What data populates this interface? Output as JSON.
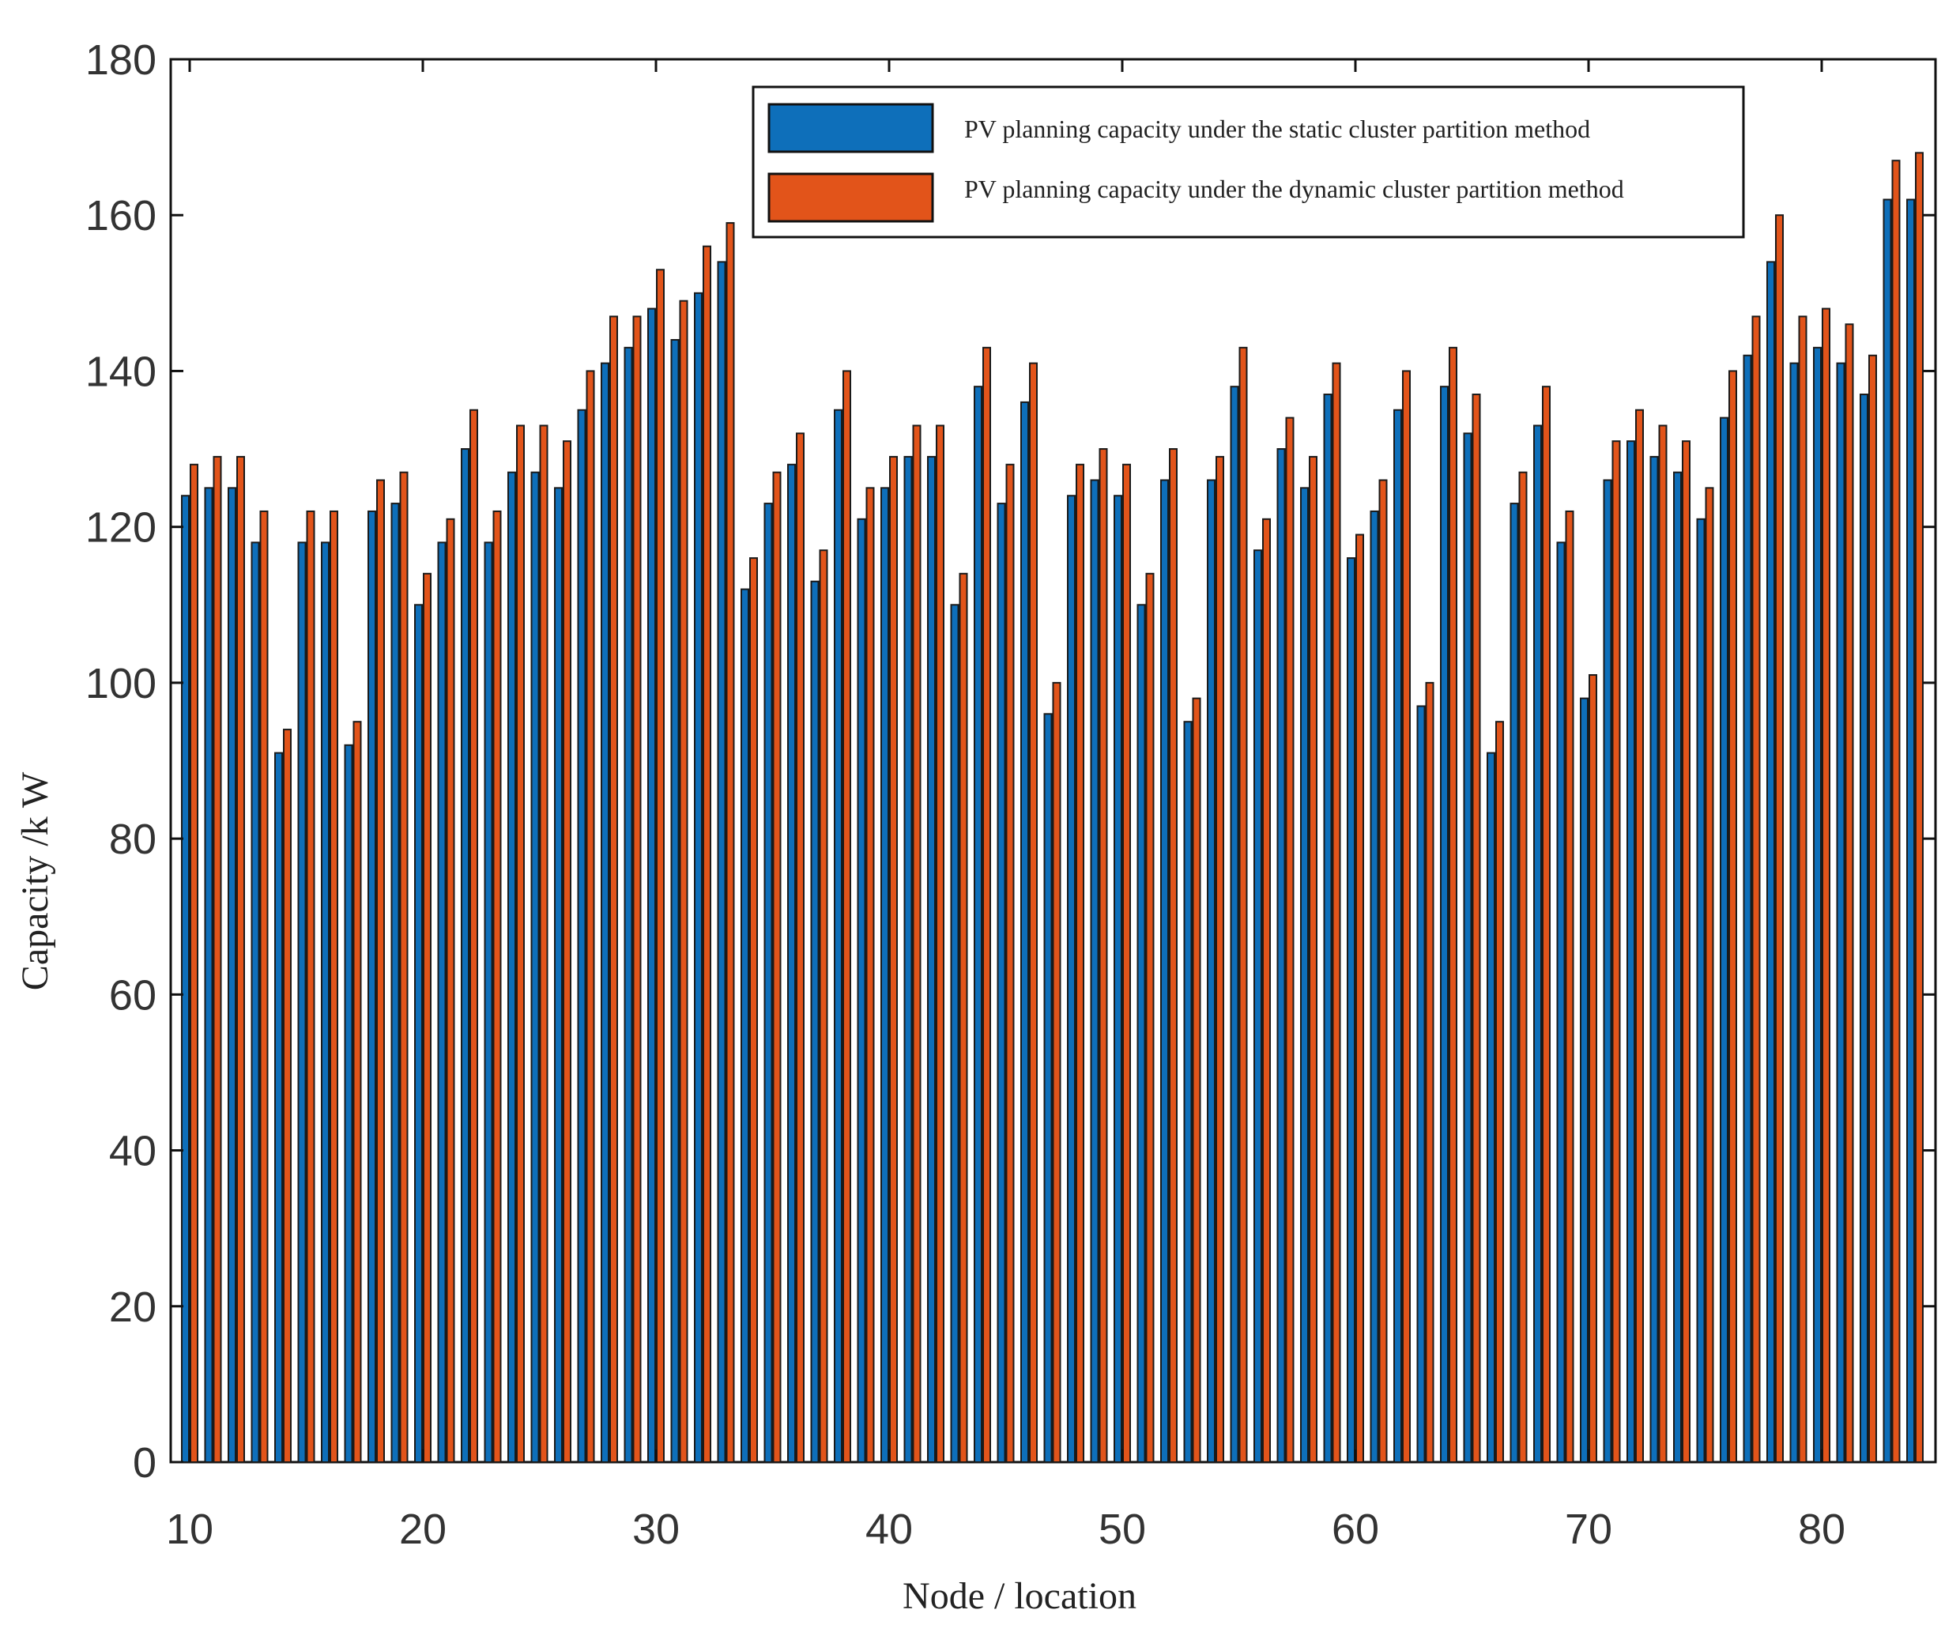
{
  "chart_data": {
    "type": "bar",
    "xlabel": "Node / location",
    "ylabel": "Capacity /k W",
    "xlim": [
      9,
      85
    ],
    "ylim": [
      0,
      180
    ],
    "x_ticks": [
      10,
      20,
      30,
      40,
      50,
      60,
      70,
      80
    ],
    "y_ticks": [
      0,
      20,
      40,
      60,
      80,
      100,
      120,
      140,
      160,
      180
    ],
    "grid": false,
    "legend_position": "top-right",
    "categories": [
      10,
      11,
      12,
      13,
      14,
      15,
      16,
      17,
      18,
      19,
      20,
      21,
      22,
      23,
      24,
      25,
      26,
      27,
      28,
      29,
      30,
      31,
      32,
      33,
      34,
      35,
      36,
      37,
      38,
      39,
      40,
      41,
      42,
      43,
      44,
      45,
      46,
      47,
      48,
      49,
      50,
      51,
      52,
      53,
      54,
      55,
      56,
      57,
      58,
      59,
      60,
      61,
      62,
      63,
      64,
      65,
      66,
      67,
      68,
      69,
      70,
      71,
      72,
      73,
      74,
      75,
      76,
      77,
      78,
      79,
      80,
      81,
      82,
      83,
      84
    ],
    "series": [
      {
        "name": "PV planning capacity under the static cluster partition method",
        "color": "#0e6fba",
        "values": [
          124,
          125,
          125,
          118,
          91,
          118,
          118,
          92,
          122,
          123,
          110,
          118,
          130,
          118,
          127,
          127,
          125,
          135,
          141,
          143,
          148,
          144,
          150,
          154,
          112,
          123,
          128,
          113,
          135,
          121,
          125,
          129,
          129,
          110,
          138,
          123,
          136,
          96,
          124,
          126,
          124,
          110,
          126,
          95,
          126,
          138,
          117,
          130,
          125,
          137,
          116,
          122,
          135,
          97,
          138,
          132,
          91,
          123,
          133,
          118,
          98,
          126,
          131,
          129,
          127,
          121,
          134,
          142,
          154,
          141,
          143,
          141,
          137,
          162,
          162
        ]
      },
      {
        "name": "PV planning capacity under the dynamic cluster partition method",
        "color": "#e2541a",
        "values": [
          128,
          129,
          129,
          122,
          94,
          122,
          122,
          95,
          126,
          127,
          114,
          121,
          135,
          122,
          133,
          133,
          131,
          140,
          147,
          147,
          153,
          149,
          156,
          159,
          116,
          127,
          132,
          117,
          140,
          125,
          129,
          133,
          133,
          114,
          143,
          128,
          141,
          100,
          128,
          130,
          128,
          114,
          130,
          98,
          129,
          143,
          121,
          134,
          129,
          141,
          119,
          126,
          140,
          100,
          143,
          137,
          95,
          127,
          138,
          122,
          101,
          131,
          135,
          133,
          131,
          125,
          140,
          147,
          160,
          147,
          148,
          146,
          142,
          167,
          168
        ]
      }
    ]
  }
}
